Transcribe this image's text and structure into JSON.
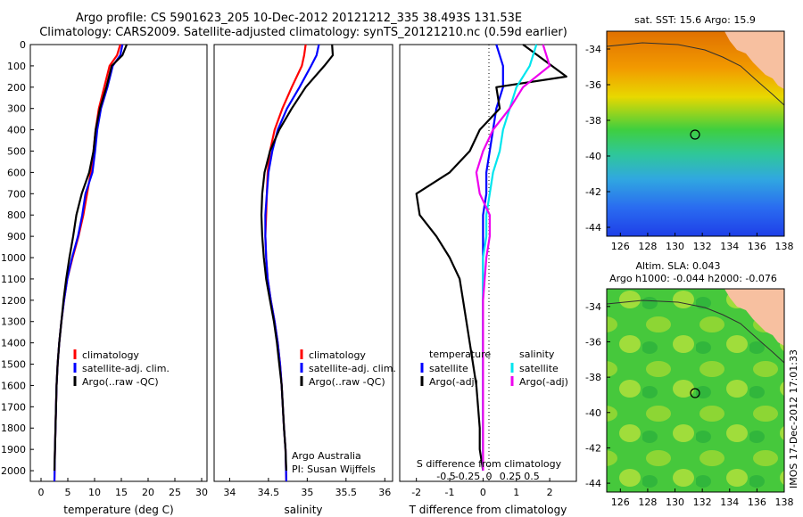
{
  "title": {
    "line1": "Argo profile: CS 5901623_205 10-Dec-2012 20121212_335 38.493S 131.53E",
    "line2": "Climatology: CARS2009. Satellite-adjusted climatology: synTS_20121210.nc (0.59d earlier)"
  },
  "colors": {
    "climatology": "#ff0000",
    "satellite": "#0000ff",
    "argo": "#000000",
    "sal_satellite": "#00e5ee",
    "sal_argo": "#ee00ee",
    "land": "#f7c0a0"
  },
  "depth_ticks": [
    "0",
    "100",
    "200",
    "300",
    "400",
    "500",
    "600",
    "700",
    "800",
    "900",
    "1000",
    "1100",
    "1200",
    "1300",
    "1400",
    "1500",
    "1600",
    "1700",
    "1800",
    "1900",
    "2000"
  ],
  "temp_panel": {
    "xlabel": "temperature (deg C)",
    "xticks": [
      "0",
      "5",
      "10",
      "15",
      "20",
      "25",
      "30"
    ],
    "legend": [
      "climatology",
      "satellite-adj. clim.",
      "Argo(..raw -QC)"
    ]
  },
  "sal_panel": {
    "xlabel": "salinity",
    "xticks": [
      "34",
      "34.5",
      "35",
      "35.5",
      "36"
    ],
    "legend": [
      "climatology",
      "satellite-adj. clim.",
      "Argo(..raw -QC)"
    ],
    "credit1": "Argo Australia",
    "credit2": "PI: Susan Wijffels"
  },
  "diff_panel": {
    "xlabel": "T difference from climatology",
    "xticks": [
      "-2",
      "-1",
      "0",
      "1",
      "2"
    ],
    "top_label": "S difference from climatology",
    "top_ticks": [
      "-0.5",
      "-0.25",
      "0",
      "0.25",
      "0.5"
    ],
    "legend_t_head": "temperature",
    "legend_t": [
      "satellite",
      "Argo(-adj)"
    ],
    "legend_s_head": "salinity",
    "legend_s": [
      "satellite",
      "Argo(-adj)"
    ]
  },
  "map_sst": {
    "title": "sat. SST: 15.6 Argo: 15.9",
    "yticks": [
      "-34",
      "-36",
      "-38",
      "-40",
      "-42",
      "-44"
    ],
    "xticks": [
      "126",
      "128",
      "130",
      "132",
      "134",
      "136",
      "138"
    ]
  },
  "map_sla": {
    "title1": "Altim. SLA: 0.043",
    "title2": "Argo h1000: -0.044 h2000: -0.076",
    "yticks": [
      "-34",
      "-36",
      "-38",
      "-40",
      "-42",
      "-44"
    ],
    "xticks": [
      "126",
      "128",
      "130",
      "132",
      "134",
      "136",
      "138"
    ]
  },
  "side_label": "IMOS 17-Dec-2012 17:01:33",
  "chart_data": [
    {
      "type": "line",
      "xlabel": "temperature (deg C)",
      "ylim": [
        2050,
        0
      ],
      "xlim": [
        -2,
        31
      ],
      "series": [
        {
          "name": "climatology",
          "x": [
            14.8,
            14.2,
            12.8,
            11.8,
            10.8,
            10.2,
            9.8,
            9.3,
            8.6,
            7.9,
            7.0,
            5.9,
            4.9,
            4.3,
            3.8,
            3.4,
            3.1,
            2.9,
            2.7,
            2.6,
            2.5
          ],
          "y": [
            0,
            50,
            100,
            200,
            300,
            400,
            500,
            600,
            700,
            800,
            900,
            1000,
            1100,
            1200,
            1300,
            1400,
            1500,
            1600,
            1800,
            1900,
            2050
          ]
        },
        {
          "name": "satellite-adj. clim.",
          "x": [
            15.2,
            14.8,
            13.4,
            12.4,
            11.2,
            10.5,
            10.1,
            9.6,
            8.3,
            7.7,
            6.9,
            5.8,
            4.9,
            4.3,
            3.8,
            3.4,
            3.1,
            2.9,
            2.7,
            2.6,
            2.5
          ],
          "y": [
            0,
            50,
            100,
            200,
            300,
            400,
            500,
            600,
            700,
            800,
            900,
            1000,
            1100,
            1200,
            1300,
            1400,
            1500,
            1600,
            1800,
            1900,
            2050
          ]
        },
        {
          "name": "Argo(..raw -QC)",
          "x": [
            16.0,
            15.2,
            13.2,
            12.2,
            11.0,
            10.2,
            9.8,
            9.0,
            7.6,
            6.6,
            6.0,
            5.3,
            4.7,
            4.2,
            3.8,
            3.4,
            3.1,
            2.9,
            2.7,
            2.6,
            2.5
          ],
          "y": [
            0,
            50,
            100,
            200,
            300,
            400,
            500,
            600,
            700,
            800,
            900,
            1000,
            1100,
            1200,
            1300,
            1400,
            1500,
            1600,
            1800,
            1900,
            2000
          ]
        }
      ]
    },
    {
      "type": "line",
      "xlabel": "salinity",
      "ylim": [
        2050,
        0
      ],
      "xlim": [
        33.8,
        36.1
      ],
      "series": [
        {
          "name": "climatology",
          "x": [
            34.98,
            34.96,
            34.93,
            34.8,
            34.68,
            34.58,
            34.52,
            34.49,
            34.48,
            34.47,
            34.46,
            34.47,
            34.49,
            34.53,
            34.58,
            34.62,
            34.65,
            34.67,
            34.7,
            34.72,
            34.73
          ],
          "y": [
            0,
            50,
            100,
            200,
            300,
            400,
            500,
            600,
            700,
            800,
            900,
            1000,
            1100,
            1200,
            1300,
            1400,
            1500,
            1600,
            1800,
            1900,
            2050
          ]
        },
        {
          "name": "satellite-adj. clim.",
          "x": [
            35.15,
            35.12,
            35.05,
            34.9,
            34.74,
            34.62,
            34.55,
            34.5,
            34.48,
            34.46,
            34.46,
            34.47,
            34.49,
            34.53,
            34.58,
            34.62,
            34.65,
            34.67,
            34.7,
            34.72,
            34.73
          ],
          "y": [
            0,
            50,
            100,
            200,
            300,
            400,
            500,
            600,
            700,
            800,
            900,
            1000,
            1100,
            1200,
            1300,
            1400,
            1500,
            1600,
            1800,
            1900,
            2050
          ]
        },
        {
          "name": "Argo(..raw -QC)",
          "x": [
            35.32,
            35.33,
            35.22,
            34.98,
            34.8,
            34.64,
            34.52,
            34.45,
            34.42,
            34.41,
            34.42,
            34.44,
            34.47,
            34.52,
            34.57,
            34.61,
            34.64,
            34.67,
            34.7,
            34.72,
            34.73
          ],
          "y": [
            0,
            50,
            100,
            200,
            300,
            400,
            500,
            600,
            700,
            800,
            900,
            1000,
            1100,
            1200,
            1300,
            1400,
            1500,
            1600,
            1800,
            1900,
            2000
          ]
        }
      ]
    },
    {
      "type": "line",
      "xlabel": "T difference from climatology",
      "ylim": [
        2050,
        0
      ],
      "xlim": [
        -2.5,
        2.8
      ],
      "series": [
        {
          "name": "satellite",
          "x": [
            0.4,
            0.6,
            0.6,
            0.4,
            0.3,
            0.2,
            0.1,
            0.1,
            0.0,
            0.0,
            0.0,
            0.0,
            0.0,
            0.0,
            0.0,
            0.0,
            0.0,
            0.0
          ],
          "y": [
            0,
            100,
            200,
            300,
            400,
            500,
            600,
            700,
            800,
            900,
            1000,
            1100,
            1200,
            1400,
            1600,
            1800,
            1900,
            2000
          ]
        },
        {
          "name": "Argo(-adj)",
          "x": [
            1.2,
            2.5,
            0.4,
            0.5,
            -0.1,
            -0.4,
            -1.0,
            -2.0,
            -1.9,
            -1.4,
            -1.0,
            -0.7,
            -0.6,
            -0.4,
            -0.2,
            -0.1,
            -0.1,
            0.0
          ],
          "y": [
            0,
            150,
            200,
            300,
            400,
            500,
            600,
            700,
            800,
            900,
            1000,
            1100,
            1200,
            1400,
            1600,
            1800,
            1900,
            2000
          ]
        },
        {
          "name": "sal. satellite",
          "x": [
            1.6,
            1.4,
            1.0,
            0.8,
            0.6,
            0.5,
            0.3,
            0.2,
            0.1,
            0.1,
            0.0,
            0.0,
            0.0,
            0.0,
            0.0
          ],
          "y": [
            0,
            100,
            200,
            300,
            400,
            500,
            600,
            700,
            800,
            900,
            1000,
            1200,
            1400,
            1600,
            2000
          ]
        },
        {
          "name": "sal. Argo(-adj)",
          "x": [
            1.8,
            2.0,
            1.2,
            0.8,
            0.3,
            0.0,
            -0.2,
            -0.1,
            0.2,
            0.2,
            0.1,
            0.0,
            0.0,
            0.0,
            0.0
          ],
          "y": [
            0,
            100,
            200,
            300,
            400,
            500,
            600,
            700,
            800,
            900,
            1000,
            1200,
            1400,
            1600,
            2000
          ]
        }
      ]
    }
  ]
}
